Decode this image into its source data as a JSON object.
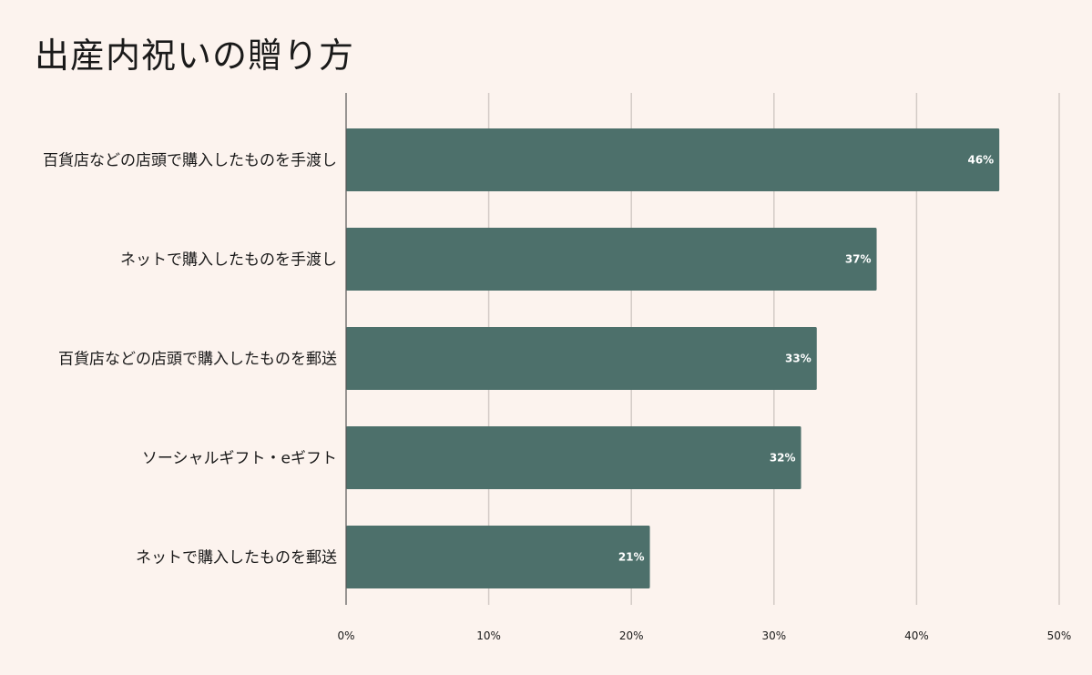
{
  "chart_data": {
    "type": "bar",
    "orientation": "horizontal",
    "title": "出産内祝いの贈り方",
    "xlabel": "",
    "ylabel": "",
    "categories": [
      "百貨店などの店頭で購入したものを手渡し",
      "ネットで購入したものを手渡し",
      "百貨店などの店頭で購入したものを郵送",
      "ソーシャルギフト・eギフト",
      "ネットで購入したものを郵送"
    ],
    "values": [
      45.8,
      37.2,
      33.0,
      31.9,
      21.3
    ],
    "data_labels": [
      "46%",
      "37%",
      "33%",
      "32%",
      "21%"
    ],
    "xlim": [
      0,
      50
    ],
    "x_ticks": [
      0,
      10,
      20,
      30,
      40,
      50
    ],
    "x_tick_labels": [
      "0%",
      "10%",
      "20%",
      "30%",
      "40%",
      "50%"
    ],
    "grid": "vertical",
    "legend": "none",
    "bar_color": "#4d706b",
    "background_color": "#fcf3ee",
    "grid_color": "#d3cbc6",
    "axis_color": "#555555"
  }
}
